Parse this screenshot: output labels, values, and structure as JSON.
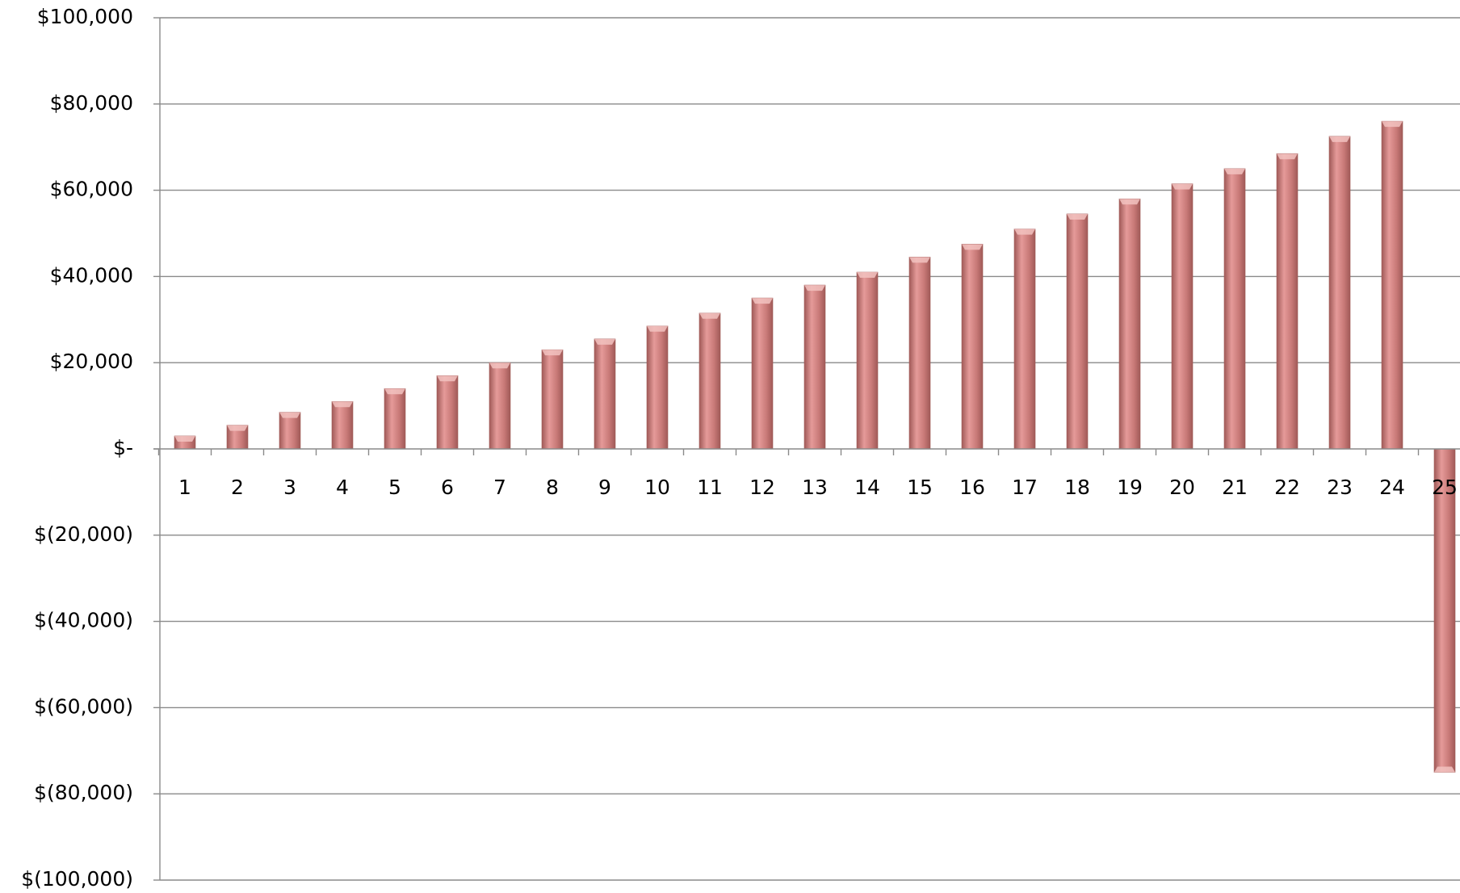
{
  "chart_data": {
    "type": "bar",
    "categories": [
      "1",
      "2",
      "3",
      "4",
      "5",
      "6",
      "7",
      "8",
      "9",
      "10",
      "11",
      "12",
      "13",
      "14",
      "15",
      "16",
      "17",
      "18",
      "19",
      "20",
      "21",
      "22",
      "23",
      "24",
      "25"
    ],
    "values": [
      3000,
      5500,
      8500,
      11000,
      14000,
      17000,
      20000,
      23000,
      25500,
      28500,
      31500,
      35000,
      38000,
      41000,
      44500,
      47500,
      51000,
      54500,
      58000,
      61500,
      65000,
      68500,
      72500,
      76000,
      -75000
    ],
    "ylim": [
      -100000,
      100000
    ],
    "yticks": [
      100000,
      80000,
      60000,
      40000,
      20000,
      0,
      -20000,
      -40000,
      -60000,
      -80000,
      -100000
    ],
    "ytick_labels": [
      "$100,000",
      "$80,000",
      "$60,000",
      "$40,000",
      "$20,000",
      "$-",
      "$(20,000)",
      "$(40,000)",
      "$(60,000)",
      "$(80,000)",
      "$(100,000)"
    ],
    "title": "",
    "xlabel": "",
    "ylabel": "",
    "grid": true,
    "legend": "none",
    "colors": {
      "bar_light": "#e59a99",
      "bar_mid": "#c97a78",
      "bar_dark": "#a05a58",
      "grid": "#8a8a8a"
    }
  }
}
